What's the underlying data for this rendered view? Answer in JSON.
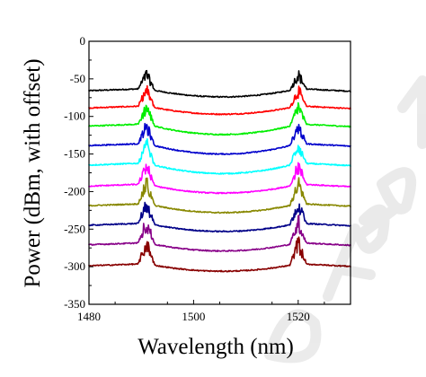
{
  "chart_data": {
    "type": "line",
    "title": "",
    "xlabel": "Wavelength (nm)",
    "ylabel": "Power (dBm, with offset)",
    "xlim": [
      1480,
      1530
    ],
    "ylim": [
      -350,
      0
    ],
    "xticks": [
      1480,
      1500,
      1520
    ],
    "yticks": [
      0,
      -50,
      -100,
      -150,
      -200,
      -250,
      -300,
      -350
    ],
    "grid": false,
    "legend": "none",
    "peak_wavelengths_nm": [
      1491,
      1520
    ],
    "series": [
      {
        "color": "#000000",
        "offset": -57,
        "edge_level": -63,
        "center_level": -74,
        "peak_height": 28
      },
      {
        "color": "#ff0000",
        "offset": -83,
        "edge_level": -86,
        "center_level": -97,
        "peak_height": 30
      },
      {
        "color": "#00ee00",
        "offset": -108,
        "edge_level": -110,
        "center_level": -124,
        "peak_height": 33
      },
      {
        "color": "#0000cc",
        "offset": -135,
        "edge_level": -136,
        "center_level": -150,
        "peak_height": 33
      },
      {
        "color": "#00ffff",
        "offset": -162,
        "edge_level": -162,
        "center_level": -176,
        "peak_height": 35
      },
      {
        "color": "#ff00ff",
        "offset": -187,
        "edge_level": -190,
        "center_level": -202,
        "peak_height": 35
      },
      {
        "color": "#888800",
        "offset": -213,
        "edge_level": -216,
        "center_level": -228,
        "peak_height": 38
      },
      {
        "color": "#000088",
        "offset": -238,
        "edge_level": -242,
        "center_level": -253,
        "peak_height": 38
      },
      {
        "color": "#880088",
        "offset": -265,
        "edge_level": -268,
        "center_level": -279,
        "peak_height": 40
      },
      {
        "color": "#880000",
        "offset": -290,
        "edge_level": -296,
        "center_level": -306,
        "peak_height": 40
      }
    ]
  },
  "icons": {
    "watermark": "accepted-manuscript-watermark"
  }
}
